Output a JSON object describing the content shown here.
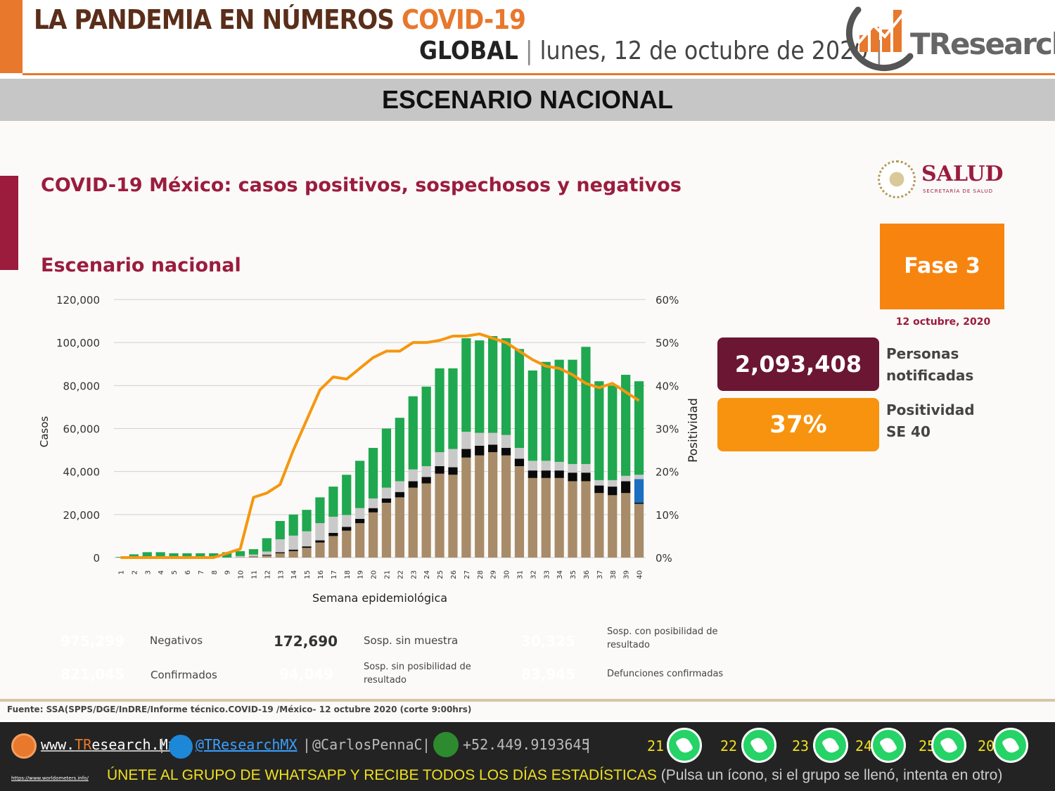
{
  "header": {
    "title_main": "LA PANDEMIA EN NÚMEROS",
    "title_accent": "COVID-19",
    "scope": "GLOBAL",
    "date": "lunes, 12 de octubre de 2020",
    "logo_text": "TResearch",
    "colors": {
      "accent": "#e8782c",
      "title": "#5a2e1a"
    }
  },
  "section": {
    "title": "ESCENARIO NACIONAL"
  },
  "slide": {
    "title": "COVID-19 México: casos positivos, sospechosos y negativos",
    "subtitle": "Escenario nacional",
    "salud_word": "SALUD",
    "salud_small": "SECRETARÍA DE SALUD",
    "phase": "Fase 3",
    "phase_date": "12 octubre, 2020",
    "kpis": [
      {
        "value": "2,093,408",
        "label1": "Personas",
        "label2": "notificadas",
        "color": "#6b1633"
      },
      {
        "value": "37%",
        "label1": "Positividad",
        "label2": "SE 40",
        "color": "#f7930f"
      }
    ],
    "source": "Fuente: SSA(SPPS/DGE/InDRE/Informe técnico.COVID-19 /México- 12 octubre 2020 (corte 9:00hrs)"
  },
  "chart_data": {
    "type": "bar",
    "stacked": true,
    "xlabel": "Semana epidemiológica",
    "ylabel": "Casos",
    "y2label": "Positividad",
    "ylim": [
      0,
      120000
    ],
    "y2lim": [
      0,
      60
    ],
    "yticks": [
      "0",
      "20,000",
      "40,000",
      "60,000",
      "80,000",
      "100,000",
      "120,000"
    ],
    "y2ticks": [
      "0%",
      "10%",
      "20%",
      "30%",
      "40%",
      "50%",
      "60%"
    ],
    "grid": true,
    "categories": [
      "1",
      "2",
      "3",
      "4",
      "5",
      "6",
      "7",
      "8",
      "9",
      "10",
      "11",
      "12",
      "13",
      "14",
      "15",
      "16",
      "17",
      "18",
      "19",
      "20",
      "21",
      "22",
      "23",
      "24",
      "25",
      "26",
      "27",
      "28",
      "29",
      "30",
      "31",
      "32",
      "33",
      "34",
      "35",
      "36",
      "37",
      "38",
      "39",
      "40"
    ],
    "series": [
      {
        "name": "Confirmados",
        "color": "#a88b68",
        "values": [
          0,
          0,
          0,
          0,
          0,
          0,
          0,
          0,
          0,
          200,
          500,
          1000,
          2000,
          3000,
          4500,
          7000,
          10000,
          12500,
          16000,
          21000,
          25500,
          28000,
          32500,
          34500,
          39000,
          38500,
          46500,
          47500,
          49000,
          47500,
          42500,
          37000,
          37000,
          37000,
          35500,
          35500,
          30000,
          29000,
          30000,
          25000
        ]
      },
      {
        "name": "Sosp. sin posibilidad de resultado",
        "color": "#0a0a0a",
        "values": [
          0,
          0,
          0,
          0,
          0,
          0,
          0,
          0,
          0,
          0,
          100,
          300,
          500,
          700,
          700,
          1000,
          1500,
          1800,
          2000,
          2000,
          2000,
          2500,
          3000,
          3000,
          3500,
          3500,
          4000,
          4500,
          3500,
          3500,
          3500,
          3500,
          3500,
          3500,
          4000,
          4000,
          3500,
          4000,
          5500,
          500
        ]
      },
      {
        "name": "Sosp. con posibilidad de resultado",
        "color": "#1a6fc0",
        "values": [
          0,
          0,
          0,
          0,
          0,
          0,
          0,
          0,
          0,
          0,
          0,
          0,
          0,
          0,
          0,
          0,
          0,
          0,
          0,
          0,
          0,
          0,
          0,
          0,
          0,
          0,
          0,
          0,
          0,
          0,
          0,
          0,
          0,
          0,
          0,
          0,
          0,
          0,
          0,
          11000
        ]
      },
      {
        "name": "Sosp. sin muestra",
        "color": "#c9c9c9",
        "values": [
          0,
          0,
          0,
          0,
          0,
          0,
          0,
          0,
          0,
          500,
          800,
          1500,
          6000,
          6500,
          7000,
          8000,
          7500,
          5500,
          5000,
          4500,
          5000,
          5000,
          5500,
          5000,
          6500,
          8500,
          8000,
          6000,
          5500,
          6000,
          5000,
          4500,
          4500,
          4000,
          4000,
          4000,
          2500,
          3000,
          2500,
          2000
        ]
      },
      {
        "name": "Negativos",
        "color": "#1fa84f",
        "values": [
          300,
          1500,
          2500,
          2500,
          2000,
          2000,
          2000,
          2000,
          2500,
          2300,
          2500,
          6200,
          8500,
          9800,
          10000,
          12000,
          14000,
          18700,
          22000,
          23500,
          27500,
          29500,
          34000,
          37000,
          39000,
          37500,
          43500,
          43000,
          45000,
          45000,
          46000,
          42000,
          46000,
          47500,
          48500,
          54500,
          46000,
          44000,
          47000,
          43500
        ]
      }
    ],
    "line": {
      "name": "Positividad",
      "color": "#f7960f",
      "values": [
        0,
        0,
        0,
        0,
        0,
        0,
        0,
        0,
        1,
        2,
        14,
        15,
        17,
        25,
        32,
        39,
        42,
        41.5,
        44,
        46.5,
        48,
        48,
        50,
        50,
        50.5,
        51.5,
        51.5,
        52,
        51,
        50,
        48,
        46,
        44.5,
        44,
        42.5,
        40.5,
        39.5,
        40.5,
        38.5,
        36.5
      ]
    }
  },
  "legend": [
    {
      "value": "975,299",
      "label": "Negativos",
      "color": "#1fa84f"
    },
    {
      "value": "172,690",
      "label": "Sosp. sin muestra",
      "color": "#c9c9c9",
      "text_color": "#333"
    },
    {
      "value": "30,325",
      "label1": "Sosp. con posibilidad de",
      "label2": "resultado",
      "color": "#1a6fc0"
    },
    {
      "value": "821,045",
      "label": "Confirmados",
      "color": "#a88b68"
    },
    {
      "value": "94,049",
      "label1": "Sosp. sin posibilidad de",
      "label2": "resultado",
      "color": "#0a0a0a"
    },
    {
      "value": "83,945",
      "label": "Defunciones confirmadas",
      "color": "#0d1f5c"
    }
  ],
  "footer": {
    "site": "www.TResearch.Mx",
    "site_a": "www.",
    "site_b": "TR",
    "site_c": "esearch.Mx",
    "twitter": "@TResearchMX",
    "twitter2": "@CarlosPennaC",
    "phone": "+52.449.9193645",
    "sep": "|",
    "whatsapp_groups": [
      "21",
      "22",
      "23",
      "24",
      "25",
      "20"
    ],
    "url": "https://www.worldometers.info/",
    "join": "ÚNETE AL GRUPO DE WHATSAPP Y RECIBE TODOS LOS DÍAS ESTADÍSTICAS",
    "join_note": "(Pulsa un ícono, si el grupo se llenó, intenta en otro)"
  }
}
